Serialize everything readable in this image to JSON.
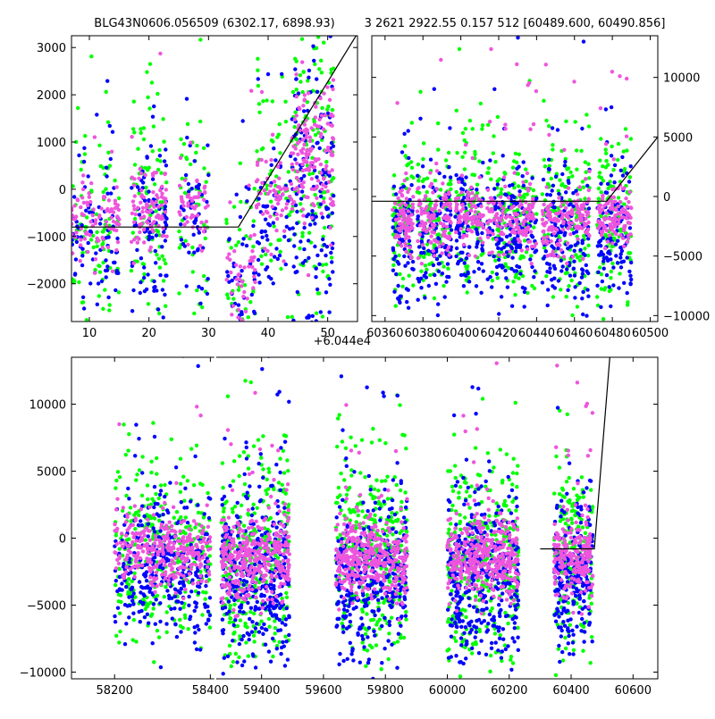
{
  "title_left": "BLG43N0606.056509 (6302.17, 6898.93)",
  "title_right": "3 2621 2922.55 0.157 512 [60489.600, 60490.856]",
  "offset_label": "+6.044e4",
  "colors": {
    "green": "#00ff00",
    "blue": "#0000ff",
    "pink": "#ee55dd",
    "model": "#000000"
  },
  "chart_data": [
    {
      "name": "top-left",
      "type": "scatter",
      "xlim": [
        7,
        55
      ],
      "ylim": [
        -2800,
        3250
      ],
      "xticks": [
        10,
        20,
        30,
        40,
        50
      ],
      "xtick_labels": [
        "10",
        "20",
        "30",
        "40",
        "50"
      ],
      "yticks": [
        -2000,
        -1000,
        0,
        1000,
        2000,
        3000
      ],
      "ytick_labels": [
        "−2000",
        "−1000",
        "0",
        "1000",
        "2000",
        "3000"
      ],
      "x_offset": "+6.044e4",
      "model_line": {
        "x": [
          7,
          35,
          55
        ],
        "y": [
          -800,
          -800,
          3300
        ]
      },
      "clusters": [
        {
          "x": [
            7,
            15
          ],
          "center": -700,
          "spread": 900,
          "n": 90
        },
        {
          "x": [
            17,
            23
          ],
          "center": -500,
          "spread": 900,
          "n": 90
        },
        {
          "x": [
            25,
            30
          ],
          "center": -300,
          "spread": 700,
          "n": 50
        },
        {
          "x": [
            33,
            38
          ],
          "center": -1800,
          "spread": 900,
          "n": 45
        },
        {
          "x": [
            38,
            44
          ],
          "center": -200,
          "spread": 900,
          "n": 60
        },
        {
          "x": [
            44,
            51
          ],
          "center": 600,
          "spread": 1400,
          "n": 150
        }
      ]
    },
    {
      "name": "top-right",
      "type": "scatter",
      "xlim": [
        60353,
        60504
      ],
      "ylim": [
        -10500,
        13500
      ],
      "xticks": [
        60360,
        60380,
        60400,
        60420,
        60440,
        60460,
        60480,
        60500
      ],
      "xtick_labels": [
        "60360",
        "60380",
        "60400",
        "60420",
        "60440",
        "60460",
        "60480",
        "60500"
      ],
      "yticks": [
        -10000,
        -5000,
        0,
        5000,
        10000
      ],
      "ytick_labels": [
        "−10000",
        "−5000",
        "0",
        "5000",
        "10000"
      ],
      "model_line": {
        "x": [
          60353,
          60477,
          60504
        ],
        "y": [
          -400,
          -400,
          5000
        ]
      },
      "clusters": [
        {
          "x": [
            60364,
            60375
          ],
          "center": -2000,
          "spread": 2500,
          "n": 80
        },
        {
          "x": [
            60377,
            60395
          ],
          "center": -2000,
          "spread": 2500,
          "n": 110
        },
        {
          "x": [
            60397,
            60412
          ],
          "center": -1500,
          "spread": 2200,
          "n": 90
        },
        {
          "x": [
            60414,
            60440
          ],
          "center": -2000,
          "spread": 2600,
          "n": 150
        },
        {
          "x": [
            60443,
            60468
          ],
          "center": -2000,
          "spread": 2600,
          "n": 150
        },
        {
          "x": [
            60472,
            60490
          ],
          "center": -1800,
          "spread": 2600,
          "n": 120
        }
      ]
    },
    {
      "name": "bottom",
      "type": "scatter",
      "xlim": [
        58110,
        60680
      ],
      "ylim": [
        -10500,
        13500
      ],
      "xticks": [
        58200,
        58400,
        59400,
        59600,
        59800,
        60000,
        60200,
        60400,
        60600
      ],
      "xtick_labels": [
        "58200",
        "58400",
        "59400",
        "59600",
        "59800",
        "60000",
        "60200",
        "60400",
        "60600"
      ],
      "yticks": [
        -10000,
        -5000,
        0,
        5000,
        10000
      ],
      "ytick_labels": [
        "−10000",
        "−5000",
        "0",
        "5000",
        "10000"
      ],
      "axis_break": {
        "left_end": 58410,
        "right_start": 59250,
        "left_frac": 0.245
      },
      "model_line": {
        "x": [
          60300,
          60475,
          60525
        ],
        "y": [
          -800,
          -800,
          13500
        ]
      },
      "clusters": [
        {
          "x": [
            58200,
            58400
          ],
          "center": -1000,
          "spread": 2400,
          "n": 320
        },
        {
          "x": [
            59270,
            59490
          ],
          "center": -1500,
          "spread": 2800,
          "n": 360
        },
        {
          "x": [
            59640,
            59870
          ],
          "center": -1500,
          "spread": 2700,
          "n": 360
        },
        {
          "x": [
            60000,
            60230
          ],
          "center": -1500,
          "spread": 2700,
          "n": 360
        },
        {
          "x": [
            60345,
            60470
          ],
          "center": -1500,
          "spread": 2600,
          "n": 220
        }
      ]
    }
  ]
}
